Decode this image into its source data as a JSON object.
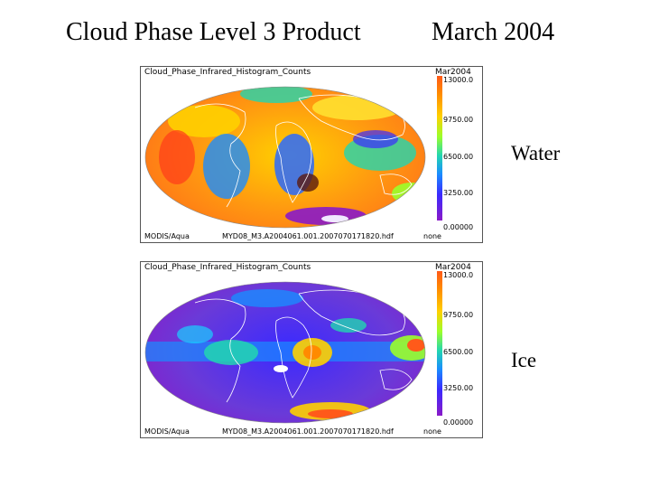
{
  "slide": {
    "title_left": "Cloud Phase Level 3 Product",
    "title_right": "March 2004",
    "label_water": "Water",
    "label_ice": "Ice"
  },
  "panels": [
    {
      "title": "Cloud_Phase_Infrared_Histogram_Counts",
      "date": "Mar2004",
      "satellite": "MODIS/Aqua",
      "file": "MYD08_M3.A2004061.001.2007070171820.hdf",
      "none_label": "none",
      "colorbar_ticks": [
        "13000.0",
        "9750.00",
        "6500.00",
        "3250.00",
        "0.00000"
      ]
    },
    {
      "title": "Cloud_Phase_Infrared_Histogram_Counts",
      "date": "Mar2004",
      "satellite": "MODIS/Aqua",
      "file": "MYD08_M3.A2004061.001.2007070171820.hdf",
      "none_label": "none",
      "colorbar_ticks": [
        "13000.0",
        "9750.00",
        "6500.00",
        "3250.00",
        "0.00000"
      ]
    }
  ],
  "colors": {
    "water_map_dominant": "#ff9a10",
    "ice_map_dominant": "#6a3ad8"
  }
}
